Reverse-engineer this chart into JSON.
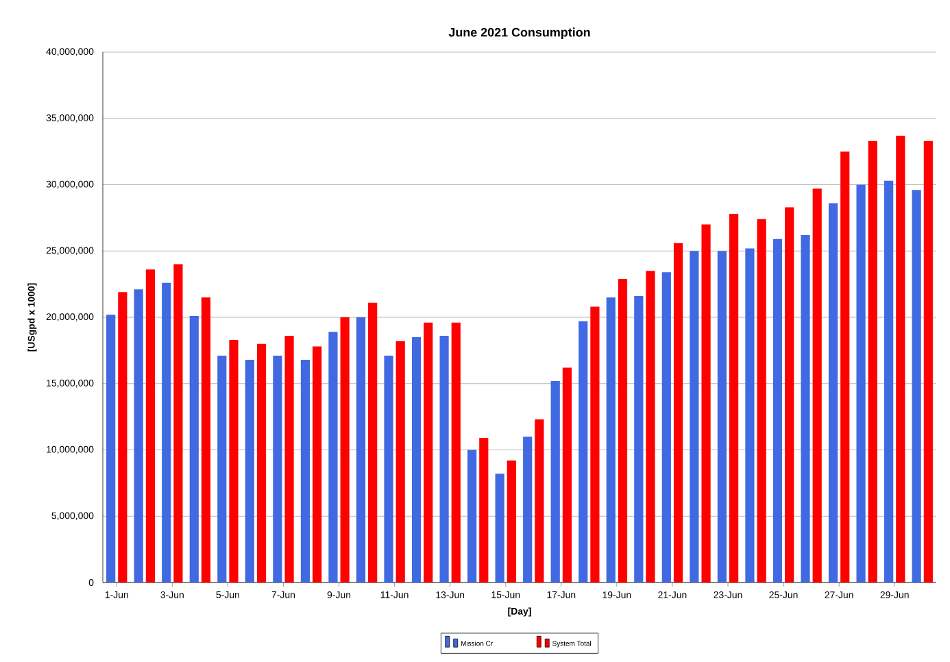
{
  "chart_data": {
    "type": "bar",
    "title": "June 2021 Consumption",
    "xlabel": "[Day]",
    "ylabel": "[USgpd x 1000]",
    "categories": [
      "1-Jun",
      null,
      "3-Jun",
      null,
      "5-Jun",
      null,
      "7-Jun",
      null,
      "9-Jun",
      null,
      "11-Jun",
      null,
      "13-Jun",
      null,
      "15-Jun",
      null,
      "17-Jun",
      null,
      "19-Jun",
      null,
      "21-Jun",
      null,
      "23-Jun",
      null,
      "25-Jun",
      null,
      "27-Jun",
      null,
      "29-Jun",
      null
    ],
    "series": [
      {
        "name": "Mission Cr",
        "color": "#4169e1",
        "values": [
          20200000,
          22100000,
          22600000,
          20100000,
          17100000,
          16800000,
          17100000,
          16800000,
          18900000,
          20000000,
          17100000,
          18500000,
          18600000,
          10000000,
          8200000,
          11000000,
          15200000,
          19700000,
          21500000,
          21600000,
          23400000,
          25000000,
          25000000,
          25200000,
          25900000,
          26200000,
          28600000,
          30000000,
          30300000,
          29600000
        ]
      },
      {
        "name": "System Total",
        "color": "#ff0000",
        "values": [
          21900000,
          23600000,
          24000000,
          21500000,
          18300000,
          18000000,
          18600000,
          17800000,
          20000000,
          21100000,
          18200000,
          19600000,
          19600000,
          10900000,
          9200000,
          12300000,
          16200000,
          20800000,
          22900000,
          23500000,
          25600000,
          27000000,
          27800000,
          27400000,
          28300000,
          29700000,
          32500000,
          33300000,
          33700000,
          33300000
        ]
      }
    ],
    "ylim": [
      0,
      40000000
    ],
    "yticks": [
      {
        "value": 0,
        "label": "0"
      },
      {
        "value": 5000000,
        "label": "5,000,000"
      },
      {
        "value": 10000000,
        "label": "10,000,000"
      },
      {
        "value": 15000000,
        "label": "15,000,000"
      },
      {
        "value": 20000000,
        "label": "20,000,000"
      },
      {
        "value": 25000000,
        "label": "25,000,000"
      },
      {
        "value": 30000000,
        "label": "30,000,000"
      },
      {
        "value": 35000000,
        "label": "35,000,000"
      },
      {
        "value": 40000000,
        "label": "40,000,000"
      }
    ],
    "grid": "y",
    "legend": "bottom"
  }
}
